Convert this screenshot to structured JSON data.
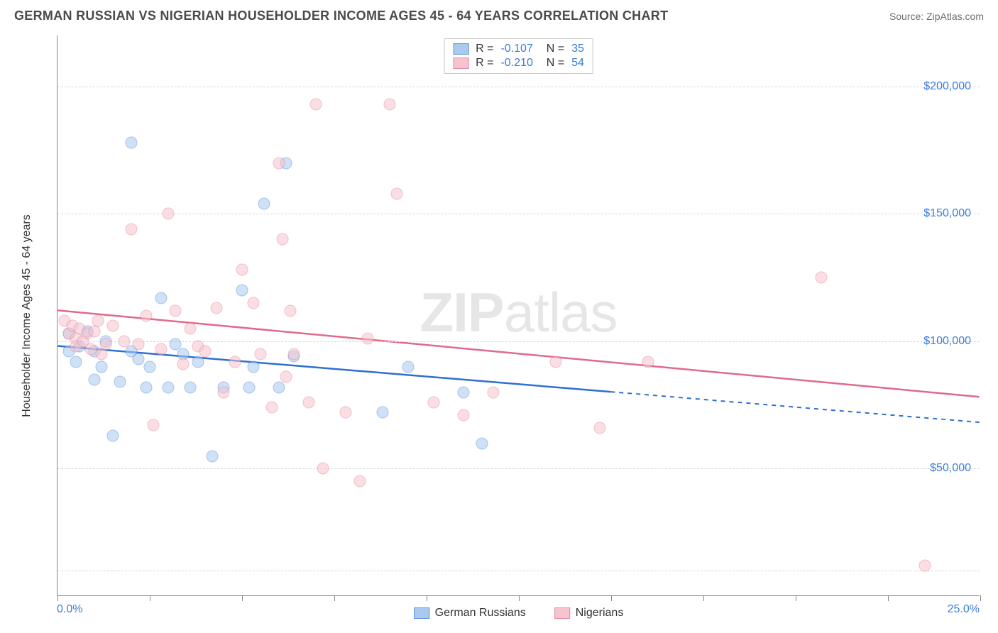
{
  "header": {
    "title": "GERMAN RUSSIAN VS NIGERIAN HOUSEHOLDER INCOME AGES 45 - 64 YEARS CORRELATION CHART",
    "source": "Source: ZipAtlas.com"
  },
  "watermark": {
    "part1": "ZIP",
    "part2": "atlas"
  },
  "chart": {
    "type": "scatter",
    "y_axis_title": "Householder Income Ages 45 - 64 years",
    "xlim": [
      0,
      25
    ],
    "ylim": [
      0,
      220000
    ],
    "x_tick_positions": [
      0,
      2.5,
      5,
      7.5,
      10,
      12.5,
      15,
      17.5,
      20,
      22.5,
      25
    ],
    "x_tick_labels_shown": {
      "0": "0.0%",
      "25": "25.0%"
    },
    "y_ticks": [
      {
        "v": 50000,
        "label": "$50,000"
      },
      {
        "v": 100000,
        "label": "$100,000"
      },
      {
        "v": 150000,
        "label": "$150,000"
      },
      {
        "v": 200000,
        "label": "$200,000"
      }
    ],
    "y_gridlines": [
      10000,
      50000,
      100000,
      150000,
      200000
    ],
    "grid_color": "#d8d8d8",
    "background_color": "#ffffff",
    "axis_label_color": "#3b7dd8",
    "marker_radius": 8.5,
    "marker_opacity": 0.55,
    "series": [
      {
        "id": "german_russians",
        "label": "German Russians",
        "fill": "#a9c9ef",
        "stroke": "#5f93d6",
        "line_color": "#2f6fd0",
        "R": "-0.107",
        "N": "35",
        "trend": {
          "y_at_xmin": 98000,
          "y_at_xmax": 68000,
          "solid_until_x": 15
        },
        "points": [
          [
            0.3,
            103000
          ],
          [
            0.3,
            96000
          ],
          [
            0.5,
            92000
          ],
          [
            0.6,
            98000
          ],
          [
            0.8,
            104000
          ],
          [
            1.0,
            85000
          ],
          [
            1.0,
            96000
          ],
          [
            1.2,
            90000
          ],
          [
            1.3,
            100000
          ],
          [
            1.5,
            63000
          ],
          [
            1.7,
            84000
          ],
          [
            2.0,
            178000
          ],
          [
            2.0,
            96000
          ],
          [
            2.2,
            93000
          ],
          [
            2.4,
            82000
          ],
          [
            2.5,
            90000
          ],
          [
            2.8,
            117000
          ],
          [
            3.0,
            82000
          ],
          [
            3.2,
            99000
          ],
          [
            3.4,
            95000
          ],
          [
            3.6,
            82000
          ],
          [
            3.8,
            92000
          ],
          [
            4.2,
            55000
          ],
          [
            4.5,
            82000
          ],
          [
            5.0,
            120000
          ],
          [
            5.2,
            82000
          ],
          [
            5.3,
            90000
          ],
          [
            5.6,
            154000
          ],
          [
            6.0,
            82000
          ],
          [
            6.2,
            170000
          ],
          [
            6.4,
            94000
          ],
          [
            8.8,
            72000
          ],
          [
            9.5,
            90000
          ],
          [
            11.0,
            80000
          ],
          [
            11.5,
            60000
          ]
        ]
      },
      {
        "id": "nigerians",
        "label": "Nigerians",
        "fill": "#f6c4ce",
        "stroke": "#e48aa0",
        "line_color": "#e06a8a",
        "R": "-0.210",
        "N": "54",
        "trend": {
          "y_at_xmin": 112000,
          "y_at_xmax": 78000,
          "solid_until_x": 25
        },
        "points": [
          [
            0.2,
            108000
          ],
          [
            0.3,
            103000
          ],
          [
            0.4,
            106000
          ],
          [
            0.5,
            101000
          ],
          [
            0.5,
            98000
          ],
          [
            0.6,
            105000
          ],
          [
            0.7,
            100000
          ],
          [
            0.8,
            103000
          ],
          [
            0.9,
            97000
          ],
          [
            1.0,
            104000
          ],
          [
            1.1,
            108000
          ],
          [
            1.2,
            95000
          ],
          [
            1.3,
            99000
          ],
          [
            1.5,
            106000
          ],
          [
            1.8,
            100000
          ],
          [
            2.0,
            144000
          ],
          [
            2.2,
            99000
          ],
          [
            2.4,
            110000
          ],
          [
            2.6,
            67000
          ],
          [
            2.8,
            97000
          ],
          [
            3.0,
            150000
          ],
          [
            3.2,
            112000
          ],
          [
            3.4,
            91000
          ],
          [
            3.6,
            105000
          ],
          [
            3.8,
            98000
          ],
          [
            4.0,
            96000
          ],
          [
            4.3,
            113000
          ],
          [
            4.5,
            80000
          ],
          [
            4.8,
            92000
          ],
          [
            5.0,
            128000
          ],
          [
            5.3,
            115000
          ],
          [
            5.5,
            95000
          ],
          [
            5.8,
            74000
          ],
          [
            6.0,
            170000
          ],
          [
            6.1,
            140000
          ],
          [
            6.2,
            86000
          ],
          [
            6.3,
            112000
          ],
          [
            6.4,
            95000
          ],
          [
            6.8,
            76000
          ],
          [
            7.0,
            193000
          ],
          [
            7.2,
            50000
          ],
          [
            7.8,
            72000
          ],
          [
            8.2,
            45000
          ],
          [
            8.4,
            101000
          ],
          [
            9.0,
            193000
          ],
          [
            9.2,
            158000
          ],
          [
            10.2,
            76000
          ],
          [
            11.0,
            71000
          ],
          [
            11.8,
            80000
          ],
          [
            13.5,
            92000
          ],
          [
            14.7,
            66000
          ],
          [
            16.0,
            92000
          ],
          [
            20.7,
            125000
          ],
          [
            23.5,
            12000
          ]
        ]
      }
    ]
  },
  "legend_bottom": [
    {
      "label": "German Russians",
      "fill": "#a9c9ef",
      "stroke": "#5f93d6"
    },
    {
      "label": "Nigerians",
      "fill": "#f6c4ce",
      "stroke": "#e48aa0"
    }
  ]
}
